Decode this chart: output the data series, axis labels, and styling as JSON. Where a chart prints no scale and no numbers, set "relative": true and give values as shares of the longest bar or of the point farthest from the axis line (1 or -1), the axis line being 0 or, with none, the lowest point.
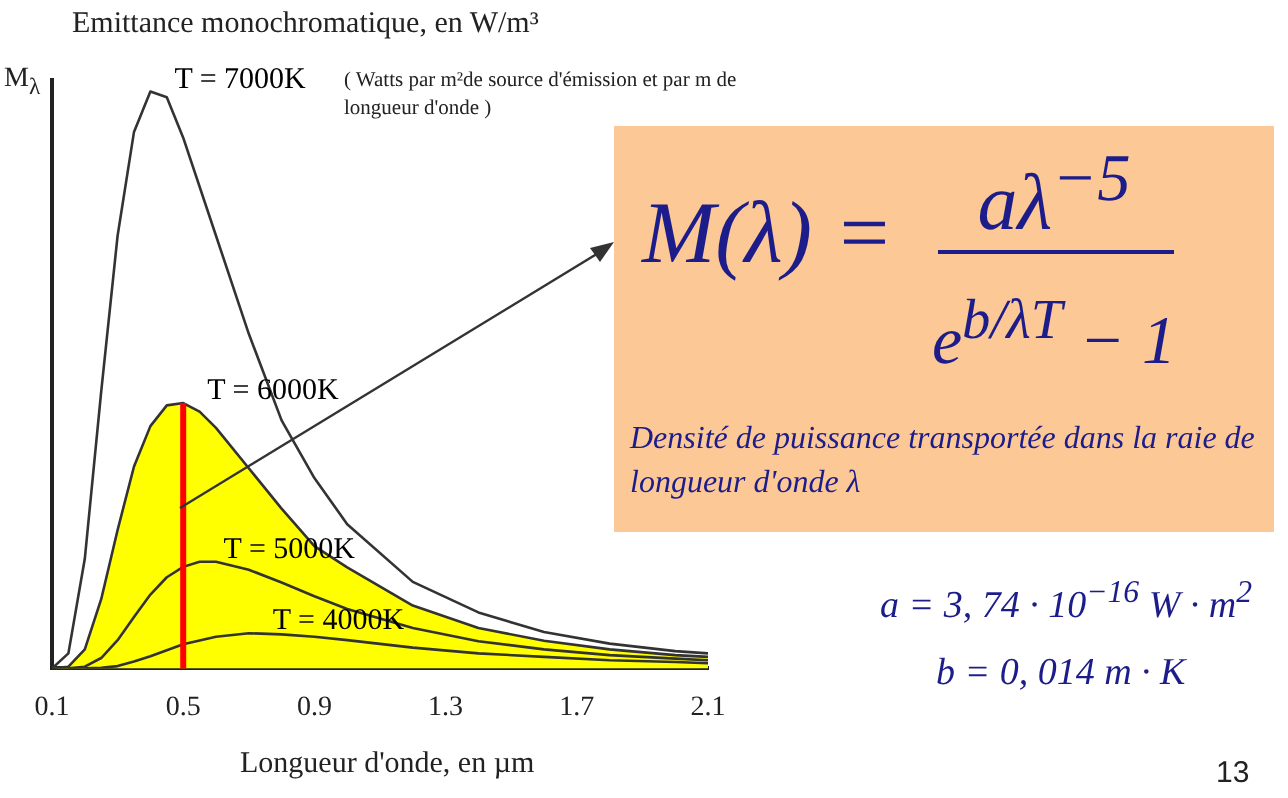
{
  "chart_data": {
    "type": "line",
    "title": "Emittance monochromatique, en W/m³",
    "subtitle": "( Watts par m²de source d'émission et par m de longueur d'onde )",
    "ylabel": "M$_{λ}$",
    "xlabel": "Longueur d'onde, en µm",
    "relative": true,
    "tick_labels": "x",
    "legend": false,
    "grid": false,
    "xlim": [
      0.1,
      2.1
    ],
    "xticks": [
      0.1,
      0.5,
      0.9,
      1.3,
      1.7,
      2.1
    ],
    "series": [
      {
        "name": "T = 6000K",
        "type": "area",
        "color": "#ffff00",
        "x": [
          0.1,
          0.15,
          0.2,
          0.25,
          0.3,
          0.35,
          0.4,
          0.45,
          0.5,
          0.55,
          0.6,
          0.7,
          0.8,
          0.9,
          1.0,
          1.2,
          1.4,
          1.6,
          1.8,
          2.0,
          2.1
        ],
        "values": [
          0,
          0.003,
          0.033,
          0.12,
          0.24,
          0.35,
          0.42,
          0.456,
          0.46,
          0.445,
          0.417,
          0.347,
          0.277,
          0.212,
          0.175,
          0.109,
          0.07,
          0.048,
          0.033,
          0.023,
          0.02
        ]
      },
      {
        "name": "T = 7000K",
        "color": "#333333",
        "x": [
          0.1,
          0.15,
          0.2,
          0.25,
          0.3,
          0.35,
          0.4,
          0.45,
          0.5,
          0.6,
          0.7,
          0.8,
          0.9,
          1.0,
          1.2,
          1.4,
          1.6,
          1.8,
          2.0,
          2.1
        ],
        "values": [
          0,
          0.026,
          0.19,
          0.48,
          0.75,
          0.93,
          1,
          0.99,
          0.92,
          0.75,
          0.58,
          0.43,
          0.33,
          0.25,
          0.15,
          0.097,
          0.063,
          0.043,
          0.03,
          0.026
        ]
      },
      {
        "name": "T = 5000K",
        "color": "#333333",
        "x": [
          0.15,
          0.2,
          0.25,
          0.3,
          0.35,
          0.4,
          0.45,
          0.5,
          0.55,
          0.6,
          0.7,
          0.8,
          0.9,
          1.0,
          1.2,
          1.4,
          1.6,
          1.8,
          2.0,
          2.1
        ],
        "values": [
          0,
          0.003,
          0.018,
          0.049,
          0.089,
          0.128,
          0.158,
          0.176,
          0.185,
          0.185,
          0.171,
          0.149,
          0.125,
          0.103,
          0.07,
          0.047,
          0.033,
          0.023,
          0.017,
          0.014
        ]
      },
      {
        "name": "T = 4000K",
        "color": "#333333",
        "x": [
          0.2,
          0.25,
          0.3,
          0.35,
          0.4,
          0.5,
          0.6,
          0.7,
          0.8,
          0.9,
          1.0,
          1.2,
          1.4,
          1.6,
          1.8,
          2.0,
          2.1
        ],
        "values": [
          0,
          0.001,
          0.004,
          0.012,
          0.021,
          0.042,
          0.055,
          0.061,
          0.059,
          0.055,
          0.049,
          0.036,
          0.026,
          0.02,
          0.014,
          0.011,
          0.009
        ]
      }
    ],
    "ref_lines": [
      {
        "axis": "x",
        "value": 0.5,
        "color": "#ff0000"
      }
    ],
    "annotations": [
      "M(λ) =",
      "aλ$^{−5}$",
      "e$^{b/λT}$ − 1",
      "Densité de puissance transportée dans la raie de longueur d'onde  λ",
      "a = 3, 74 · 10$^{−16}$  W · m$^{2}$",
      "b = 0, 014  m · K",
      "13"
    ]
  }
}
